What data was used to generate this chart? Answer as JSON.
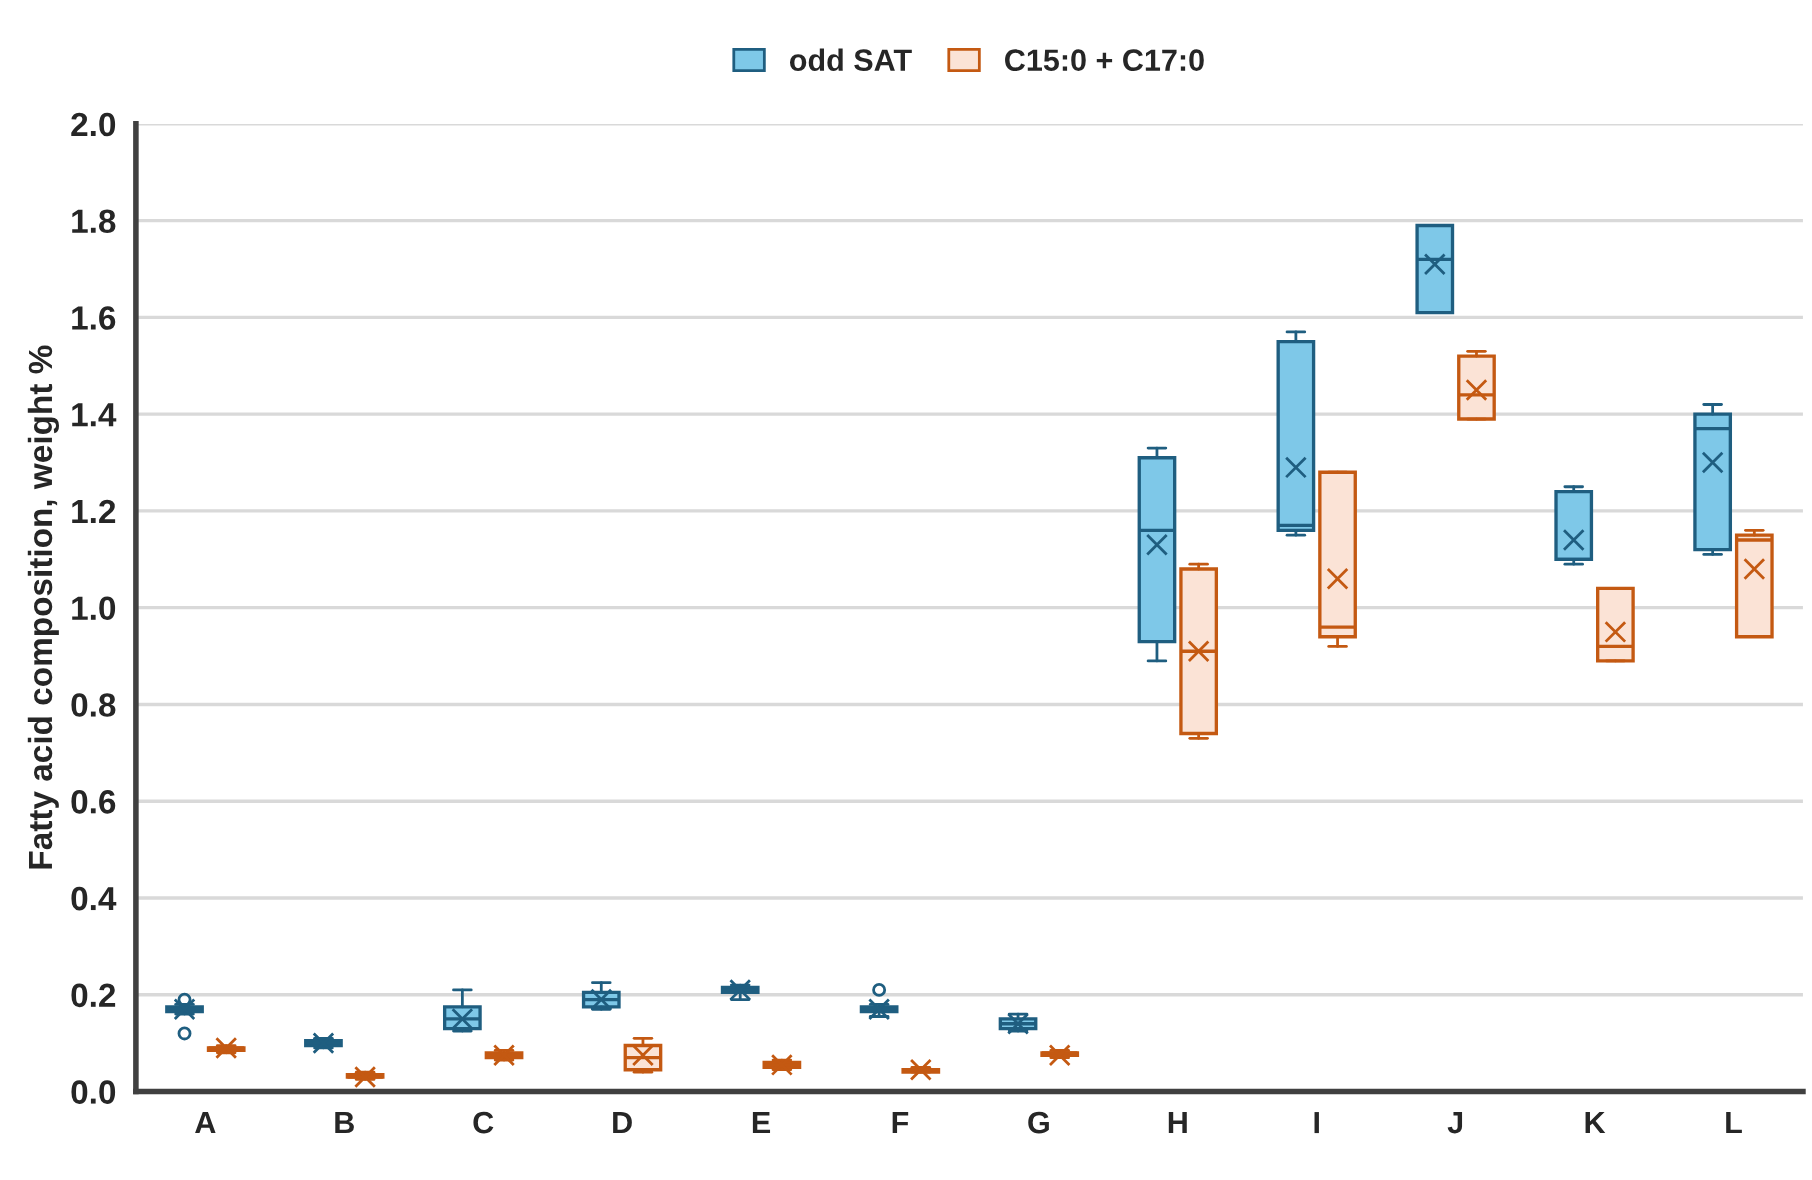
{
  "chart_data": {
    "type": "box",
    "ylabel": "Fatty acid composition, weight %",
    "categories": [
      "A",
      "B",
      "C",
      "D",
      "E",
      "F",
      "G",
      "H",
      "I",
      "J",
      "K",
      "L"
    ],
    "ylim": [
      0,
      2
    ],
    "yticks": [
      {
        "value": 0,
        "label": "0.0"
      },
      0.2,
      0.4,
      0.6,
      0.8,
      {
        "value": 1,
        "label": "1.0"
      },
      1.2,
      1.4,
      1.6,
      1.8,
      {
        "value": 2,
        "label": "2.0"
      }
    ],
    "grid": "y",
    "legend": "top",
    "series": [
      {
        "name": "odd SAT",
        "color": "#7ec8e8",
        "boxes": [
          {
            "low": 0.16,
            "q1": 0.165,
            "median": 0.17,
            "q3": 0.175,
            "high": 0.18,
            "mean": 0.17,
            "outliers": [
              0.19,
              0.12
            ]
          },
          {
            "low": 0.09,
            "q1": 0.095,
            "median": 0.1,
            "q3": 0.105,
            "high": 0.11,
            "mean": 0.1
          },
          {
            "low": 0.125,
            "q1": 0.13,
            "median": 0.15,
            "q3": 0.175,
            "high": 0.21,
            "mean": 0.15
          },
          {
            "low": 0.17,
            "q1": 0.175,
            "median": 0.19,
            "q3": 0.205,
            "high": 0.225,
            "mean": 0.19
          },
          {
            "low": 0.19,
            "q1": 0.205,
            "median": 0.21,
            "q3": 0.215,
            "high": 0.22,
            "mean": 0.21
          },
          {
            "low": 0.155,
            "q1": 0.165,
            "median": 0.17,
            "q3": 0.175,
            "high": 0.18,
            "mean": 0.17,
            "outliers": [
              0.21
            ]
          },
          {
            "low": 0.125,
            "q1": 0.13,
            "median": 0.14,
            "q3": 0.15,
            "high": 0.16,
            "mean": 0.14
          },
          {
            "low": 0.89,
            "q1": 0.93,
            "median": 1.16,
            "q3": 1.31,
            "high": 1.33,
            "mean": 1.13
          },
          {
            "low": 1.15,
            "q1": 1.16,
            "median": 1.17,
            "q3": 1.55,
            "high": 1.57,
            "mean": 1.29
          },
          {
            "low": 1.61,
            "q1": 1.61,
            "median": 1.72,
            "q3": 1.79,
            "high": 1.79,
            "mean": 1.71
          },
          {
            "low": 1.09,
            "q1": 1.1,
            "median": 1.1,
            "q3": 1.24,
            "high": 1.25,
            "mean": 1.14
          },
          {
            "low": 1.11,
            "q1": 1.12,
            "median": 1.37,
            "q3": 1.4,
            "high": 1.42,
            "mean": 1.3
          }
        ]
      },
      {
        "name": "C15:0 + C17:0",
        "color": "#fbe3d6",
        "boxes": [
          {
            "low": 0.08,
            "q1": 0.085,
            "median": 0.09,
            "q3": 0.09,
            "high": 0.095,
            "mean": 0.09
          },
          {
            "low": 0.025,
            "q1": 0.03,
            "median": 0.03,
            "q3": 0.035,
            "high": 0.04,
            "mean": 0.03
          },
          {
            "low": 0.065,
            "q1": 0.07,
            "median": 0.075,
            "q3": 0.08,
            "high": 0.085,
            "mean": 0.075
          },
          {
            "low": 0.04,
            "q1": 0.045,
            "median": 0.07,
            "q3": 0.095,
            "high": 0.11,
            "mean": 0.075
          },
          {
            "low": 0.045,
            "q1": 0.05,
            "median": 0.055,
            "q3": 0.06,
            "high": 0.065,
            "mean": 0.055
          },
          {
            "low": 0.04,
            "q1": 0.04,
            "median": 0.045,
            "q3": 0.045,
            "high": 0.05,
            "mean": 0.045
          },
          {
            "low": 0.07,
            "q1": 0.075,
            "median": 0.08,
            "q3": 0.08,
            "high": 0.085,
            "mean": 0.075
          },
          {
            "low": 0.73,
            "q1": 0.74,
            "median": 0.91,
            "q3": 1.08,
            "high": 1.09,
            "mean": 0.91
          },
          {
            "low": 0.92,
            "q1": 0.94,
            "median": 0.96,
            "q3": 1.28,
            "high": 1.28,
            "mean": 1.06
          },
          {
            "low": 1.39,
            "q1": 1.39,
            "median": 1.44,
            "q3": 1.52,
            "high": 1.53,
            "mean": 1.45
          },
          {
            "low": 0.89,
            "q1": 0.89,
            "median": 0.92,
            "q3": 1.04,
            "high": 1.04,
            "mean": 0.95
          },
          {
            "low": 0.94,
            "q1": 0.94,
            "median": 1.14,
            "q3": 1.15,
            "high": 1.16,
            "mean": 1.08
          }
        ]
      }
    ]
  }
}
